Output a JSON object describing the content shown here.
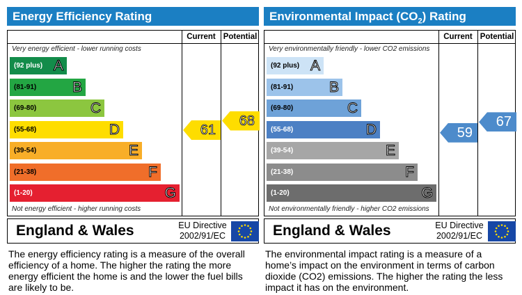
{
  "energy_efficiency": {
    "title": "Energy Efficiency Rating",
    "col_current": "Current",
    "col_potential": "Potential",
    "top_note": "Very energy efficient - lower running costs",
    "bottom_note": "Not energy efficient - higher running costs",
    "region": "England & Wales",
    "directive_line1": "EU Directive",
    "directive_line2": "2002/91/EC",
    "description": "The energy efficiency rating is a measure of the overall efficiency of a home. The higher the rating the more energy efficient the home is and the lower the fuel bills are likely to be.",
    "colors": {
      "header": "#1b7fc3",
      "current_arrow": "#fedd00",
      "potential_arrow": "#fedd00"
    }
  },
  "environmental_impact": {
    "title_main": "Environmental Impact (CO",
    "title_sub": "2",
    "title_end": ") Rating",
    "col_current": "Current",
    "col_potential": "Potential",
    "top_note": "Very environmentally friendly - lower CO2 emissions",
    "bottom_note": "Not environmentally friendly - higher CO2 emissions",
    "region": "England & Wales",
    "directive_line1": "EU Directive",
    "directive_line2": "2002/91/EC",
    "description": "The environmental impact rating is a measure of a home’s impact on the environment in terms of carbon dioxide (CO2) emissions. The higher the rating the less impact it has on the environment.",
    "colors": {
      "header": "#1b7fc3",
      "current_arrow": "#4d8bcb",
      "potential_arrow": "#4d8bcb"
    }
  },
  "chart_data": [
    {
      "type": "bar",
      "title": "Energy Efficiency Rating",
      "categories": [
        "A",
        "B",
        "C",
        "D",
        "E",
        "F",
        "G"
      ],
      "bands": [
        {
          "letter": "A",
          "range": "(92 plus)",
          "color": "#138c4a"
        },
        {
          "letter": "B",
          "range": "(81-91)",
          "color": "#23a643"
        },
        {
          "letter": "C",
          "range": "(69-80)",
          "color": "#8cc63f"
        },
        {
          "letter": "D",
          "range": "(55-68)",
          "color": "#fedd00"
        },
        {
          "letter": "E",
          "range": "(39-54)",
          "color": "#f8ae28"
        },
        {
          "letter": "F",
          "range": "(21-38)",
          "color": "#f06e2a"
        },
        {
          "letter": "G",
          "range": "(1-20)",
          "color": "#e52030"
        }
      ],
      "current": 61,
      "potential": 68
    },
    {
      "type": "bar",
      "title": "Environmental Impact (CO2) Rating",
      "categories": [
        "A",
        "B",
        "C",
        "D",
        "E",
        "F",
        "G"
      ],
      "bands": [
        {
          "letter": "A",
          "range": "(92 plus)",
          "color": "#cde3f6"
        },
        {
          "letter": "B",
          "range": "(81-91)",
          "color": "#9cc3ea"
        },
        {
          "letter": "C",
          "range": "(69-80)",
          "color": "#6ea2d8"
        },
        {
          "letter": "D",
          "range": "(55-68)",
          "color": "#4c80c4"
        },
        {
          "letter": "E",
          "range": "(39-54)",
          "color": "#a6a6a6"
        },
        {
          "letter": "F",
          "range": "(21-38)",
          "color": "#8c8c8c"
        },
        {
          "letter": "G",
          "range": "(1-20)",
          "color": "#6d6d6d"
        }
      ],
      "current": 59,
      "potential": 67
    }
  ]
}
